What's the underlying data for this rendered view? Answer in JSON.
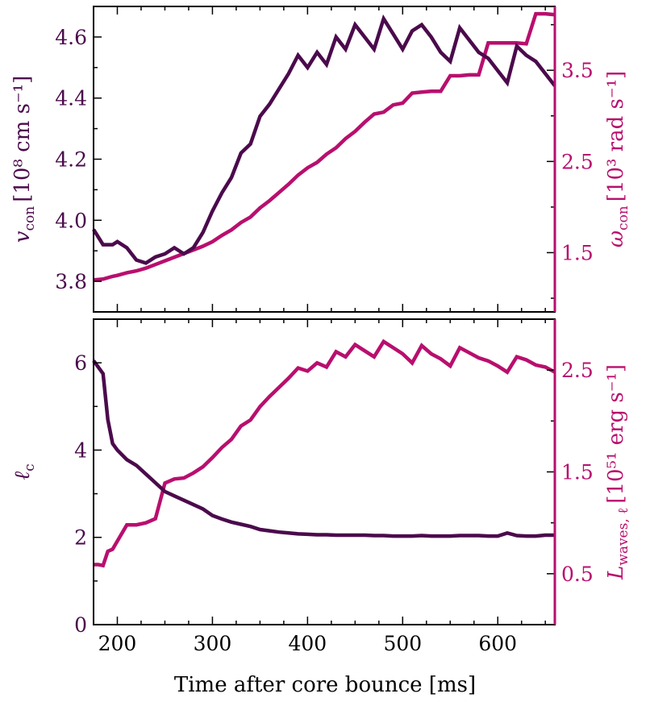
{
  "colors": {
    "dark_series": "#4b0a4c",
    "bright_series": "#b80f6e",
    "axes": "#000000"
  },
  "xlabel": "Time after core bounce [ms]",
  "chart_data": [
    {
      "type": "line",
      "panel": "top",
      "xlim": [
        175,
        660
      ],
      "xticks": [
        200,
        300,
        400,
        500,
        600
      ],
      "left_axis": {
        "label_main": "v",
        "label_sub": "con",
        "label_unit": "[10⁸ cm s⁻¹]",
        "ylim": [
          3.7,
          4.7
        ],
        "ticks": [
          3.8,
          4.0,
          4.2,
          4.4,
          4.6
        ],
        "tick_labels": [
          "3.8",
          "4.0",
          "4.2",
          "4.4",
          "4.6"
        ]
      },
      "right_axis": {
        "label_main": "ω",
        "label_sub": "con",
        "label_unit": "[10³ rad s⁻¹]",
        "ylim": [
          0.85,
          4.2
        ],
        "ticks": [
          1.5,
          2.5,
          3.5
        ],
        "tick_labels": [
          "1.5",
          "2.5",
          "3.5"
        ]
      },
      "series": [
        {
          "axis": "left",
          "color": "#4b0a4c",
          "x": [
            175,
            185,
            195,
            200,
            210,
            220,
            230,
            240,
            250,
            260,
            270,
            280,
            290,
            300,
            310,
            320,
            330,
            340,
            350,
            360,
            370,
            380,
            390,
            400,
            410,
            420,
            430,
            440,
            450,
            460,
            470,
            480,
            490,
            500,
            510,
            520,
            530,
            540,
            550,
            560,
            570,
            580,
            590,
            600,
            610,
            620,
            630,
            640,
            650,
            660
          ],
          "y": [
            3.97,
            3.92,
            3.92,
            3.93,
            3.91,
            3.87,
            3.86,
            3.88,
            3.89,
            3.91,
            3.89,
            3.91,
            3.96,
            4.03,
            4.09,
            4.14,
            4.22,
            4.25,
            4.34,
            4.38,
            4.43,
            4.48,
            4.54,
            4.5,
            4.55,
            4.51,
            4.6,
            4.56,
            4.64,
            4.6,
            4.56,
            4.66,
            4.61,
            4.56,
            4.62,
            4.64,
            4.6,
            4.55,
            4.52,
            4.63,
            4.59,
            4.55,
            4.53,
            4.49,
            4.45,
            4.57,
            4.54,
            4.52,
            4.48,
            4.44
          ]
        },
        {
          "axis": "right",
          "color": "#b80f6e",
          "x": [
            175,
            185,
            195,
            200,
            210,
            220,
            230,
            240,
            250,
            260,
            270,
            280,
            290,
            300,
            310,
            320,
            330,
            340,
            350,
            360,
            370,
            380,
            390,
            400,
            410,
            420,
            430,
            440,
            450,
            460,
            470,
            480,
            490,
            500,
            510,
            520,
            530,
            540,
            550,
            560,
            570,
            580,
            590,
            600,
            610,
            620,
            630,
            640,
            650,
            660
          ],
          "y": [
            1.2,
            1.21,
            1.24,
            1.25,
            1.28,
            1.3,
            1.33,
            1.37,
            1.41,
            1.45,
            1.49,
            1.53,
            1.57,
            1.62,
            1.69,
            1.75,
            1.83,
            1.89,
            1.99,
            2.07,
            2.16,
            2.25,
            2.35,
            2.43,
            2.49,
            2.58,
            2.65,
            2.75,
            2.83,
            2.93,
            3.02,
            3.04,
            3.12,
            3.14,
            3.25,
            3.26,
            3.27,
            3.27,
            3.44,
            3.44,
            3.45,
            3.45,
            3.8,
            3.8,
            3.8,
            3.8,
            3.79,
            4.12,
            4.12,
            4.11
          ]
        }
      ]
    },
    {
      "type": "line",
      "panel": "bottom",
      "xlim": [
        175,
        660
      ],
      "xticks": [
        200,
        300,
        400,
        500,
        600
      ],
      "xtick_labels": [
        "200",
        "300",
        "400",
        "500",
        "600"
      ],
      "left_axis": {
        "label_main": "ℓ",
        "label_sub": "c",
        "label_unit": "",
        "ylim": [
          0,
          7
        ],
        "ticks": [
          0,
          2,
          4,
          6
        ],
        "tick_labels": [
          "0",
          "2",
          "4",
          "6"
        ]
      },
      "right_axis": {
        "label_main": "L",
        "label_sub": "waves, ℓ",
        "label_unit": "[10⁵¹ erg s⁻¹]",
        "ylim": [
          0,
          3.0
        ],
        "ticks": [
          0.5,
          1.5,
          2.5
        ],
        "tick_labels": [
          "0.5",
          "1.5",
          "2.5"
        ]
      },
      "series": [
        {
          "axis": "left",
          "color": "#4b0a4c",
          "x": [
            175,
            180,
            185,
            190,
            195,
            200,
            210,
            220,
            230,
            240,
            250,
            260,
            270,
            280,
            290,
            300,
            310,
            320,
            330,
            340,
            350,
            360,
            370,
            380,
            390,
            400,
            410,
            420,
            430,
            440,
            450,
            460,
            470,
            480,
            490,
            500,
            510,
            520,
            530,
            540,
            550,
            560,
            570,
            580,
            590,
            600,
            610,
            620,
            630,
            640,
            650,
            660
          ],
          "y": [
            6.05,
            5.9,
            5.75,
            4.7,
            4.15,
            4.0,
            3.78,
            3.65,
            3.45,
            3.25,
            3.05,
            2.95,
            2.85,
            2.75,
            2.65,
            2.5,
            2.42,
            2.35,
            2.3,
            2.25,
            2.18,
            2.15,
            2.12,
            2.1,
            2.08,
            2.07,
            2.06,
            2.06,
            2.05,
            2.05,
            2.05,
            2.05,
            2.04,
            2.04,
            2.03,
            2.03,
            2.03,
            2.04,
            2.03,
            2.03,
            2.03,
            2.04,
            2.04,
            2.04,
            2.03,
            2.03,
            2.1,
            2.04,
            2.03,
            2.03,
            2.05,
            2.05
          ]
        },
        {
          "axis": "right",
          "color": "#b80f6e",
          "x": [
            175,
            180,
            185,
            190,
            195,
            200,
            210,
            220,
            230,
            240,
            250,
            260,
            270,
            280,
            290,
            300,
            310,
            320,
            330,
            340,
            350,
            360,
            370,
            380,
            390,
            400,
            410,
            420,
            430,
            440,
            450,
            460,
            470,
            480,
            490,
            500,
            510,
            520,
            530,
            540,
            550,
            560,
            570,
            580,
            590,
            600,
            610,
            620,
            630,
            640,
            650,
            660
          ],
          "y": [
            0.59,
            0.59,
            0.58,
            0.72,
            0.74,
            0.82,
            0.98,
            0.98,
            1.0,
            1.04,
            1.39,
            1.43,
            1.44,
            1.49,
            1.55,
            1.64,
            1.74,
            1.82,
            1.95,
            2.01,
            2.14,
            2.24,
            2.33,
            2.42,
            2.52,
            2.49,
            2.57,
            2.53,
            2.68,
            2.63,
            2.75,
            2.69,
            2.63,
            2.78,
            2.72,
            2.66,
            2.57,
            2.74,
            2.66,
            2.61,
            2.54,
            2.72,
            2.67,
            2.62,
            2.59,
            2.54,
            2.48,
            2.63,
            2.6,
            2.55,
            2.53,
            2.48
          ]
        }
      ]
    }
  ]
}
